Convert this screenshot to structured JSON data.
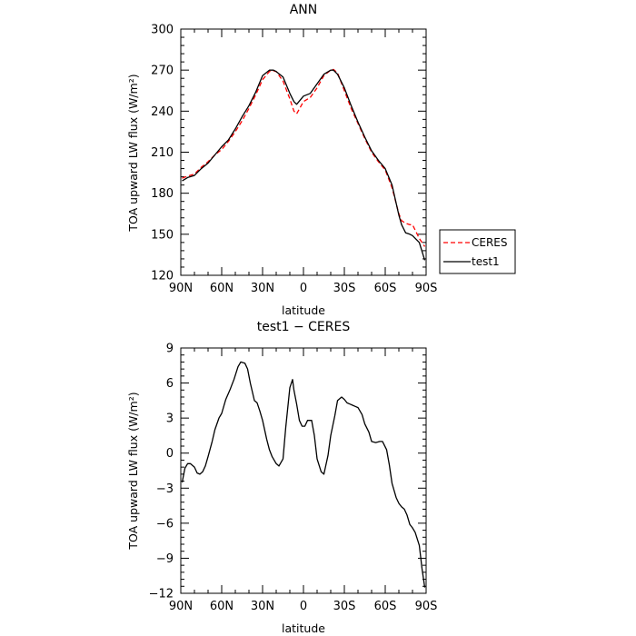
{
  "colors": {
    "background": "#ffffff",
    "axes": "#000000",
    "ceres": "#ff0000",
    "test1": "#000000"
  },
  "chart_data": [
    {
      "type": "line",
      "title": "ANN",
      "xlabel": "latitude",
      "ylabel": "TOA upward LW flux (W/m²)",
      "xlim": [
        90,
        -90
      ],
      "ylim": [
        120,
        300
      ],
      "x_ticks": [
        90,
        60,
        30,
        0,
        -30,
        -60,
        -90
      ],
      "x_tick_labels": [
        "90N",
        "60N",
        "30N",
        "0",
        "30S",
        "60S",
        "90S"
      ],
      "y_ticks": [
        120,
        150,
        180,
        210,
        240,
        270,
        300
      ],
      "y_tick_labels": [
        "120",
        "150",
        "180",
        "210",
        "240",
        "270",
        "300"
      ],
      "grid": false,
      "legend_placement": "outside right",
      "series": [
        {
          "name": "CERES",
          "color": "#ff0000",
          "dash": "dashed",
          "x": [
            89,
            85,
            80,
            75,
            70,
            65,
            60,
            55,
            50,
            45,
            40,
            35,
            30,
            25,
            22,
            20,
            15,
            10,
            7,
            5,
            0,
            -5,
            -10,
            -15,
            -20,
            -22,
            -25,
            -30,
            -35,
            -40,
            -45,
            -50,
            -55,
            -60,
            -65,
            -70,
            -72,
            -75,
            -78,
            -80,
            -85,
            -89
          ],
          "y": [
            191,
            192.5,
            194,
            199,
            203,
            208,
            212,
            218,
            225,
            233,
            242,
            252,
            263,
            269,
            269.5,
            269,
            262,
            249,
            240,
            238,
            247,
            250,
            257,
            266,
            270,
            270.5,
            268,
            255,
            242,
            231,
            220,
            210,
            203,
            197,
            184,
            165,
            160,
            158,
            157,
            157,
            147,
            141
          ]
        },
        {
          "name": "test1",
          "color": "#000000",
          "dash": "solid",
          "x": [
            89,
            85,
            80,
            75,
            70,
            65,
            60,
            55,
            50,
            45,
            40,
            35,
            30,
            25,
            22,
            20,
            15,
            10,
            7,
            5,
            0,
            -5,
            -10,
            -15,
            -20,
            -22,
            -25,
            -30,
            -35,
            -40,
            -45,
            -50,
            -55,
            -60,
            -65,
            -70,
            -72,
            -75,
            -78,
            -80,
            -85,
            -89
          ],
          "y": [
            189,
            191.5,
            193,
            198,
            202,
            208,
            214,
            219,
            227,
            236,
            244,
            254,
            266,
            270,
            270,
            269,
            265,
            253,
            247,
            245,
            251,
            253,
            260,
            267,
            270,
            270,
            267,
            257,
            244,
            232,
            221,
            211,
            204,
            198,
            186,
            164,
            157,
            151,
            150,
            149,
            144,
            131
          ]
        }
      ]
    },
    {
      "type": "line",
      "title": "test1 − CERES",
      "xlabel": "latitude",
      "ylabel": "TOA upward LW flux (W/m²)",
      "xlim": [
        90,
        -90
      ],
      "ylim": [
        -12,
        9
      ],
      "x_ticks": [
        90,
        60,
        30,
        0,
        -30,
        -60,
        -90
      ],
      "x_tick_labels": [
        "90N",
        "60N",
        "30N",
        "0",
        "30S",
        "60S",
        "90S"
      ],
      "y_ticks": [
        -12,
        -9,
        -6,
        -3,
        0,
        3,
        6,
        9
      ],
      "y_tick_labels": [
        "−12",
        "−9",
        "−6",
        "−3",
        "0",
        "3",
        "6",
        "9"
      ],
      "grid": false,
      "series": [
        {
          "name": "test1 − CERES",
          "color": "#000000",
          "dash": "solid",
          "x": [
            89,
            87,
            85,
            83,
            80,
            78,
            76,
            74,
            72,
            70,
            67,
            65,
            62,
            60,
            57,
            54,
            51,
            48,
            46,
            43,
            41,
            39,
            36,
            34,
            32,
            30,
            27,
            25,
            23,
            20,
            18,
            15,
            13,
            10,
            8,
            7,
            5,
            3,
            1,
            -1,
            -3,
            -6,
            -8,
            -10,
            -13,
            -15,
            -18,
            -20,
            -23,
            -25,
            -28,
            -30,
            -32,
            -34,
            -36,
            -38,
            -40,
            -43,
            -45,
            -48,
            -50,
            -53,
            -56,
            -58,
            -61,
            -63,
            -65,
            -68,
            -70,
            -72,
            -74,
            -76,
            -78,
            -80,
            -82,
            -85,
            -87,
            -89
          ],
          "y": [
            -2.5,
            -1.3,
            -0.9,
            -0.9,
            -1.2,
            -1.7,
            -1.8,
            -1.6,
            -1.1,
            -0.3,
            1.0,
            2.0,
            3.0,
            3.4,
            4.6,
            5.4,
            6.3,
            7.4,
            7.8,
            7.7,
            7.2,
            6.0,
            4.5,
            4.3,
            3.6,
            2.8,
            1.2,
            0.3,
            -0.3,
            -0.9,
            -1.1,
            -0.5,
            2.2,
            5.6,
            6.3,
            5.4,
            4.2,
            2.8,
            2.3,
            2.3,
            2.8,
            2.8,
            1.5,
            -0.5,
            -1.6,
            -1.8,
            -0.2,
            1.5,
            3.2,
            4.5,
            4.8,
            4.6,
            4.3,
            4.2,
            4.1,
            4.0,
            3.9,
            3.3,
            2.5,
            1.8,
            1.0,
            0.9,
            1.0,
            1.0,
            0.3,
            -1.0,
            -2.6,
            -3.8,
            -4.3,
            -4.6,
            -4.8,
            -5.3,
            -6.1,
            -6.4,
            -6.8,
            -7.9,
            -9.9,
            -11.5
          ]
        }
      ]
    }
  ]
}
